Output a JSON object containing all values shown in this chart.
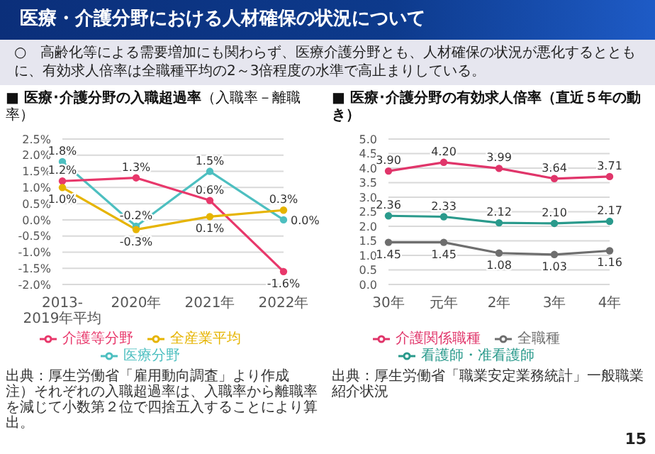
{
  "chart_data": [
    {
      "type": "other",
      "title": "医療・介護分野における人材確保の状況について",
      "annotations": [
        "○　高齢化等による需要増加にも関わらず、医療介護分野とも、人材確保の状況が悪化するとともに、有効求人倍率は全職種平均の2～3倍程度の水準で高止まりしている。",
        "15"
      ]
    },
    {
      "type": "line",
      "title": "■ 医療･介護分野の入職超過率",
      "subtitle": "（入職率－離職率）",
      "categories": [
        "2013-2019年平均",
        "2020年",
        "2021年",
        "2022年"
      ],
      "series": [
        {
          "name": "医療分野",
          "color": "#4dbfc0",
          "values": [
            1.8,
            -0.2,
            1.5,
            0.0
          ],
          "value_labels": [
            "1.8%",
            "-0.2%",
            "1.5%",
            "0.0%"
          ]
        },
        {
          "name": "介護等分野",
          "color": "#e8386b",
          "values": [
            1.2,
            1.3,
            0.6,
            -1.6
          ],
          "value_labels": [
            "1.2%",
            "1.3%",
            "0.6%",
            "-1.6%"
          ]
        },
        {
          "name": "全産業平均",
          "color": "#e6b400",
          "values": [
            1.0,
            -0.3,
            0.1,
            0.3
          ],
          "value_labels": [
            "1.0%",
            "-0.3%",
            "0.1%",
            "0.3%"
          ]
        }
      ],
      "ylim": [
        -2.0,
        2.5
      ],
      "yticks": [
        {
          "value": -2.0,
          "label": "-2.0%"
        },
        {
          "value": -1.5,
          "label": "-1.5%"
        },
        {
          "value": -1.0,
          "label": "-1.0%"
        },
        {
          "value": -0.5,
          "label": "-0.5%"
        },
        {
          "value": 0,
          "label": "0.0%"
        },
        {
          "value": 0.5,
          "label": "0.5%"
        },
        {
          "value": 1.0,
          "label": "1.0%"
        },
        {
          "value": 1.5,
          "label": "1.5%"
        },
        {
          "value": 2.0,
          "label": "2.0%"
        },
        {
          "value": 2.5,
          "label": "2.5%"
        }
      ],
      "grid": "y",
      "legend": "bottom",
      "marker": "circle",
      "annotations": [
        "出典：厚生労働省「雇用動向調査」より作成",
        "注）それぞれの入職超過率は、入職率から離職率を減じて小数第２位で四捨五入することにより算出。"
      ]
    },
    {
      "type": "line",
      "title": "■ 医療･介護分野の有効求人倍率（直近５年の動き）",
      "categories": [
        "30年",
        "元年",
        "2年",
        "3年",
        "4年"
      ],
      "series": [
        {
          "name": "介護関係職種",
          "color": "#e0356a",
          "values": [
            3.9,
            4.2,
            3.99,
            3.64,
            3.71
          ],
          "value_labels": [
            "3.90",
            "4.20",
            "3.99",
            "3.64",
            "3.71"
          ]
        },
        {
          "name": "看護師・准看護師",
          "color": "#2a9a8c",
          "values": [
            2.36,
            2.33,
            2.12,
            2.1,
            2.17
          ],
          "value_labels": [
            "2.36",
            "2.33",
            "2.12",
            "2.10",
            "2.17"
          ]
        },
        {
          "name": "全職種",
          "color": "#6e6e6e",
          "values": [
            1.45,
            1.45,
            1.08,
            1.03,
            1.16
          ],
          "value_labels": [
            "1.45",
            "1.45",
            "1.08",
            "1.03",
            "1.16"
          ]
        }
      ],
      "ylim": [
        0,
        5.0
      ],
      "yticks": [
        {
          "value": 0,
          "label": "0.0"
        },
        {
          "value": 0.5,
          "label": "0.5"
        },
        {
          "value": 1.0,
          "label": "1.0"
        },
        {
          "value": 1.5,
          "label": "1.5"
        },
        {
          "value": 2.0,
          "label": "2.0"
        },
        {
          "value": 2.5,
          "label": "2.5"
        },
        {
          "value": 3.0,
          "label": "3.0"
        },
        {
          "value": 3.5,
          "label": "3.5"
        },
        {
          "value": 4.0,
          "label": "4.0"
        },
        {
          "value": 4.5,
          "label": "4.5"
        },
        {
          "value": 5.0,
          "label": "5.0"
        }
      ],
      "grid": "y",
      "legend": "bottom",
      "marker": "circle",
      "annotations": [
        "出典：厚生労働省「職業安定業務統計」一般職業紹介状況"
      ]
    }
  ]
}
